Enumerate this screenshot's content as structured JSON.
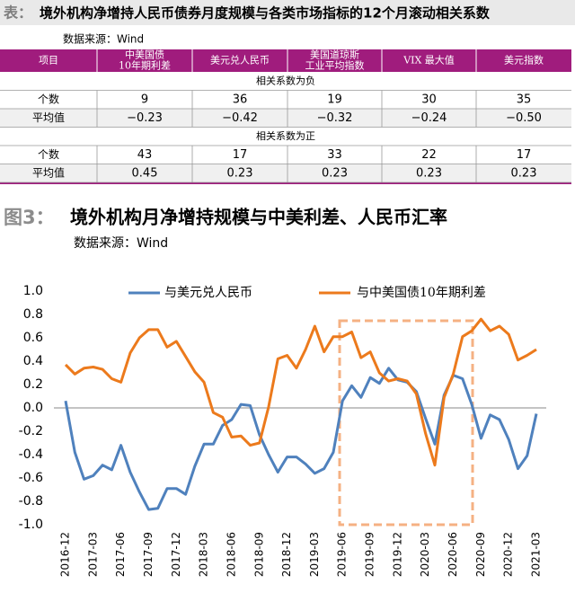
{
  "table": {
    "label": "表：",
    "title": "境外机构净增持人民币债券月度规模与各类市场指标的12个月滚动相关系数",
    "source": "数据来源：Wind",
    "header": [
      [
        "项目"
      ],
      [
        "中美国债",
        "10年期利差"
      ],
      [
        "美元兑人民币"
      ],
      [
        "美国道琼斯",
        "工业平均指数"
      ],
      [
        "VIX 最大值"
      ],
      [
        "美元指数"
      ]
    ],
    "sections": [
      {
        "label": "相关系数为负",
        "rows": [
          {
            "label": "个数",
            "cells": [
              "9",
              "36",
              "19",
              "30",
              "35"
            ]
          },
          {
            "label": "平均值",
            "cells": [
              "−0.23",
              "−0.42",
              "−0.32",
              "−0.24",
              "−0.50"
            ]
          }
        ]
      },
      {
        "label": "相关系数为正",
        "rows": [
          {
            "label": "个数",
            "cells": [
              "43",
              "17",
              "33",
              "22",
              "17"
            ]
          },
          {
            "label": "平均值",
            "cells": [
              "0.45",
              "0.23",
              "0.23",
              "0.23",
              "0.23"
            ]
          }
        ]
      }
    ]
  },
  "chart_data": {
    "type": "line",
    "label": "图3：",
    "title": "境外机构月净增持规模与中美利差、人民币汇率",
    "source": "数据来源：Wind",
    "categories": [
      "2016-12",
      null,
      null,
      "2017-03",
      null,
      null,
      "2017-06",
      null,
      null,
      "2017-09",
      null,
      null,
      "2017-12",
      null,
      null,
      "2018-03",
      null,
      null,
      "2018-06",
      null,
      null,
      "2018-09",
      null,
      null,
      "2018-12",
      null,
      null,
      "2019-03",
      null,
      null,
      "2019-06",
      null,
      null,
      "2019-09",
      null,
      null,
      "2019-12",
      null,
      null,
      "2020-03",
      null,
      null,
      "2020-06",
      null,
      null,
      "2020-09",
      null,
      null,
      "2020-12",
      null,
      null,
      "2021-03"
    ],
    "series": [
      {
        "name": "与美元兑人民币",
        "color": "#4f81bd",
        "values": [
          0.06,
          -0.38,
          -0.61,
          -0.58,
          -0.49,
          -0.53,
          -0.32,
          -0.55,
          -0.72,
          -0.87,
          -0.86,
          -0.69,
          -0.69,
          -0.74,
          -0.5,
          -0.31,
          -0.31,
          -0.15,
          -0.1,
          0.03,
          0.02,
          -0.23,
          -0.4,
          -0.55,
          -0.42,
          -0.42,
          -0.48,
          -0.56,
          -0.52,
          -0.38,
          0.06,
          0.19,
          0.09,
          0.26,
          0.21,
          0.34,
          0.24,
          0.22,
          0.14,
          -0.09,
          -0.31,
          0.11,
          0.28,
          0.25,
          0.03,
          -0.26,
          -0.06,
          -0.1,
          -0.27,
          -0.52,
          -0.41,
          -0.05
        ]
      },
      {
        "name": "与中美国债10年期利差",
        "color": "#ec7a1c",
        "values": [
          0.37,
          0.29,
          0.34,
          0.35,
          0.33,
          0.25,
          0.22,
          0.47,
          0.6,
          0.67,
          0.67,
          0.52,
          0.57,
          0.44,
          0.31,
          0.22,
          -0.04,
          -0.08,
          -0.25,
          -0.24,
          -0.32,
          -0.3,
          0.01,
          0.42,
          0.45,
          0.34,
          0.5,
          0.7,
          0.48,
          0.61,
          0.61,
          0.65,
          0.43,
          0.48,
          0.3,
          0.23,
          0.25,
          0.23,
          0.12,
          -0.22,
          -0.49,
          0.09,
          0.29,
          0.61,
          0.66,
          0.76,
          0.66,
          0.7,
          0.63,
          0.41,
          0.45,
          0.5
        ]
      }
    ],
    "ylim": [
      -1.0,
      1.0
    ],
    "yticks": [
      {
        "value": 1.0,
        "label": "1.0"
      },
      {
        "value": 0.8,
        "label": "0.8"
      },
      {
        "value": 0.6,
        "label": "0.6"
      },
      {
        "value": 0.4,
        "label": "0.4"
      },
      {
        "value": 0.2,
        "label": "0.2"
      },
      {
        "value": 0.0,
        "label": "0.0"
      },
      {
        "value": -0.2,
        "label": "-0.2"
      },
      {
        "value": -0.4,
        "label": "-0.4"
      },
      {
        "value": -0.6,
        "label": "-0.6"
      },
      {
        "value": -0.8,
        "label": "-0.8"
      },
      {
        "value": -1.0,
        "label": "-1.0"
      }
    ],
    "grid": false
  }
}
